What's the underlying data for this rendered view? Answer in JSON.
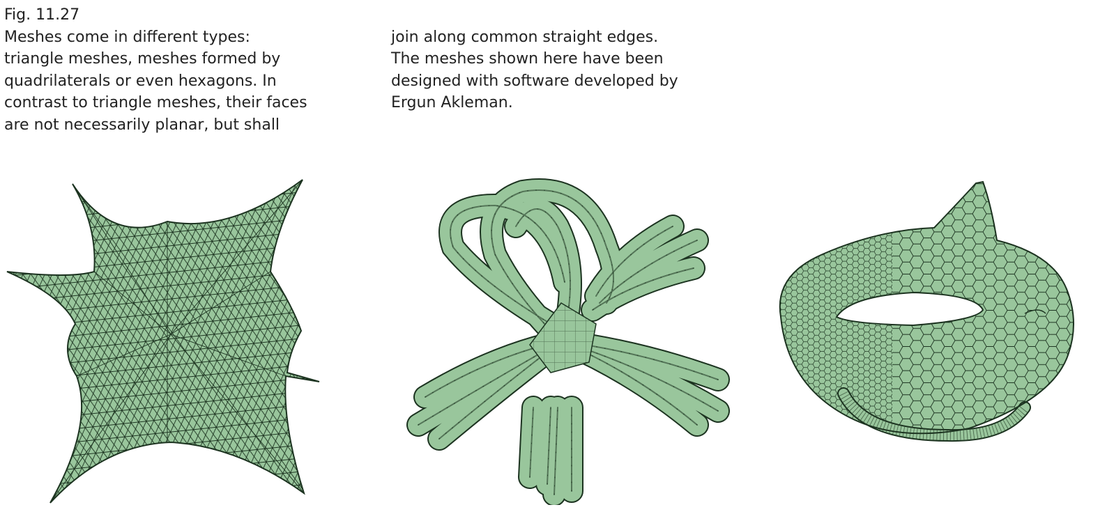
{
  "figure_label": "Fig. 11.27",
  "caption": {
    "col1": [
      "Meshes come in different types:",
      "triangle meshes, meshes formed by",
      "quadrilaterals or even hexagons. In",
      "contrast to triangle meshes, their faces",
      "are not necessarily planar, but shall"
    ],
    "col2": [
      "join along common straight edges.",
      "The meshes shown here have been",
      "designed with software developed by",
      "Ergun Akleman."
    ]
  },
  "colors": {
    "mesh_fill": "#99c69c",
    "mesh_line": "#1c3320"
  },
  "illustrations": [
    "triangle-mesh",
    "quad-mesh",
    "hexagon-mesh"
  ]
}
